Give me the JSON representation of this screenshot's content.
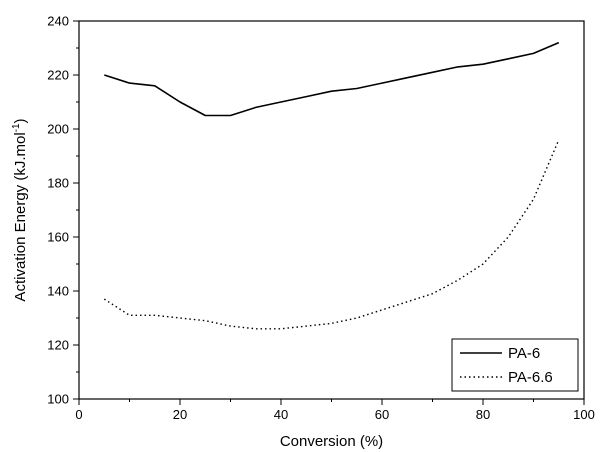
{
  "chart_data": {
    "type": "line",
    "title": "",
    "xlabel": "Conversion (%)",
    "ylabel_main": "Activation Energy (kJ.mol",
    "ylabel_sup": "-1",
    "ylabel_close": ")",
    "xlim": [
      0,
      100
    ],
    "ylim": [
      100,
      240
    ],
    "xticks": [
      0,
      20,
      40,
      60,
      80,
      100
    ],
    "yticks": [
      100,
      120,
      140,
      160,
      180,
      200,
      220,
      240
    ],
    "grid": false,
    "legend_position": "bottom-right",
    "series": [
      {
        "name": "PA-6",
        "style": "solid",
        "color": "#000000",
        "x": [
          5,
          10,
          15,
          20,
          25,
          30,
          35,
          40,
          45,
          50,
          55,
          60,
          65,
          70,
          75,
          80,
          85,
          90,
          95
        ],
        "y": [
          220,
          217,
          216,
          210,
          205,
          205,
          208,
          210,
          212,
          214,
          215,
          217,
          219,
          221,
          223,
          224,
          226,
          228,
          232
        ]
      },
      {
        "name": "PA-6.6",
        "style": "dotted",
        "color": "#000000",
        "x": [
          5,
          10,
          15,
          20,
          25,
          30,
          35,
          40,
          45,
          50,
          55,
          60,
          65,
          70,
          75,
          80,
          85,
          90,
          95
        ],
        "y": [
          137,
          131,
          131,
          130,
          129,
          127,
          126,
          126,
          127,
          128,
          130,
          133,
          136,
          139,
          144,
          150,
          160,
          174,
          196
        ]
      }
    ]
  }
}
